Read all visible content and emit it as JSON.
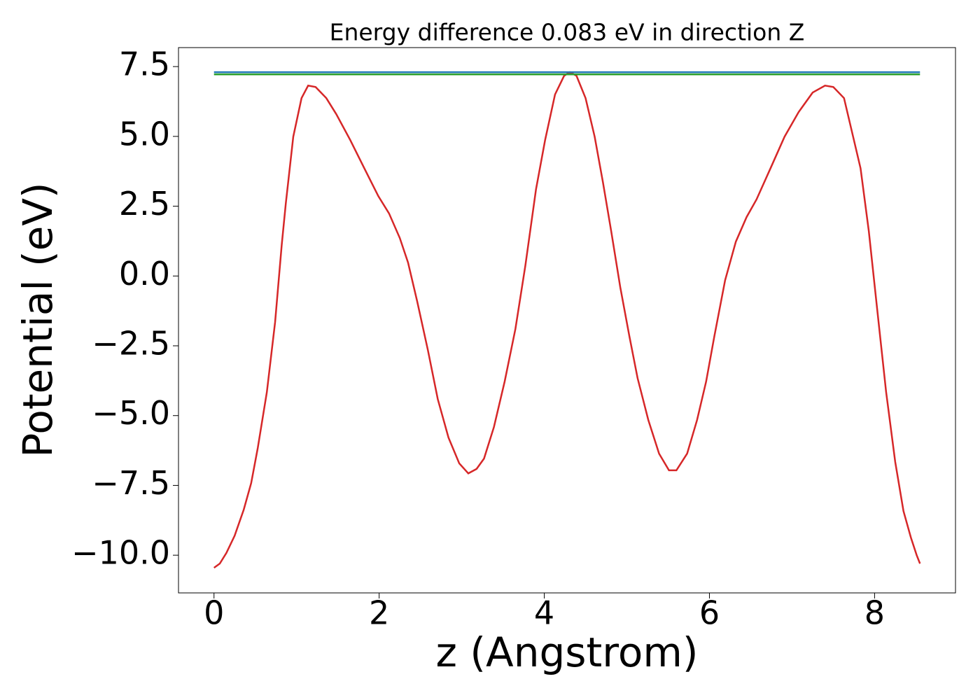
{
  "chart_data": {
    "type": "line",
    "title": "Energy difference 0.083 eV in direction Z",
    "xlabel": "z (Angstrom)",
    "ylabel": "Potential (eV)",
    "xlim": [
      -0.43,
      8.98
    ],
    "ylim": [
      -11.35,
      8.18
    ],
    "xticks": [
      0,
      2,
      4,
      6,
      8
    ],
    "yticks": [
      7.5,
      {
        "value": 5,
        "label": "5.0"
      },
      2.5,
      {
        "value": 0,
        "label": "0.0"
      },
      {
        "value": -2.5,
        "label": "−2.5"
      },
      {
        "value": -5,
        "label": "−5.0"
      },
      {
        "value": -7.5,
        "label": "−7.5"
      },
      {
        "value": -10,
        "label": "−10.0"
      }
    ],
    "series": [
      {
        "color": "#d62728",
        "x": [
          0,
          0.07,
          0.15,
          0.25,
          0.36,
          0.45,
          0.53,
          0.64,
          0.74,
          0.82,
          0.87,
          0.96,
          1.06,
          1.14,
          1.23,
          1.36,
          1.48,
          1.65,
          1.82,
          1.99,
          2.12,
          2.25,
          2.35,
          2.46,
          2.59,
          2.71,
          2.84,
          2.97,
          3.08,
          3.18,
          3.27,
          3.39,
          3.52,
          3.65,
          3.77,
          3.9,
          4.01,
          4.13,
          4.24,
          4.31,
          4.39,
          4.5,
          4.61,
          4.71,
          4.81,
          4.92,
          5.03,
          5.13,
          5.26,
          5.39,
          5.51,
          5.6,
          5.73,
          5.85,
          5.96,
          6.06,
          6.19,
          6.32,
          6.45,
          6.57,
          6.74,
          6.91,
          7.08,
          7.25,
          7.4,
          7.5,
          7.63,
          7.74,
          7.83,
          7.93,
          8.03,
          8.14,
          8.25,
          8.35,
          8.44,
          8.51,
          8.55
        ],
        "values": [
          -10.45,
          -10.3,
          -9.92,
          -9.3,
          -8.37,
          -7.42,
          -6.16,
          -4.16,
          -1.65,
          1.11,
          2.61,
          4.99,
          6.37,
          6.82,
          6.77,
          6.37,
          5.8,
          4.87,
          3.86,
          2.86,
          2.24,
          1.36,
          0.48,
          -0.9,
          -2.65,
          -4.41,
          -5.79,
          -6.71,
          -7.07,
          -6.91,
          -6.54,
          -5.41,
          -3.78,
          -1.9,
          0.36,
          3.11,
          4.87,
          6.5,
          7.17,
          7.3,
          7.17,
          6.37,
          4.99,
          3.36,
          1.61,
          -0.4,
          -2.15,
          -3.66,
          -5.16,
          -6.36,
          -6.96,
          -6.96,
          -6.36,
          -5.16,
          -3.78,
          -2.15,
          -0.15,
          1.23,
          2.11,
          2.74,
          3.86,
          4.99,
          5.87,
          6.57,
          6.82,
          6.77,
          6.37,
          4.99,
          3.86,
          1.61,
          -1.15,
          -4.16,
          -6.66,
          -8.42,
          -9.37,
          -10.0,
          -10.3
        ]
      },
      {
        "color": "#1f77b4",
        "x": [
          0,
          8.55
        ],
        "values": [
          7.3,
          7.3
        ]
      },
      {
        "color": "#2ca02c",
        "x": [
          0,
          8.55
        ],
        "values": [
          7.22,
          7.22
        ]
      }
    ]
  }
}
